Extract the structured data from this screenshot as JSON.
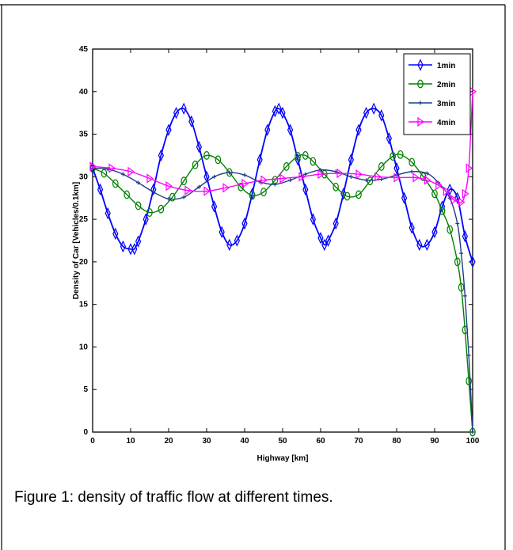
{
  "caption": "Figure 1: density of traffic flow at different times.",
  "chart_data": {
    "type": "line",
    "xlabel": "Highway [km]",
    "ylabel": "Density of Car [Vehicles/0.1km]",
    "xlim": [
      0,
      100
    ],
    "ylim": [
      0,
      45
    ],
    "xticks": [
      0,
      10,
      20,
      30,
      40,
      50,
      60,
      70,
      80,
      90,
      100
    ],
    "yticks": [
      0,
      5,
      10,
      15,
      20,
      25,
      30,
      35,
      40,
      45
    ],
    "legend_position": "top-right",
    "grid": false,
    "series": [
      {
        "name": "1min",
        "color": "#0000ff",
        "marker": "diamond",
        "x": [
          0,
          2,
          4,
          6,
          8,
          10,
          11,
          12,
          14,
          16,
          18,
          20,
          22,
          24,
          26,
          28,
          30,
          32,
          34,
          36,
          38,
          40,
          42,
          44,
          46,
          48,
          49,
          50,
          52,
          54,
          56,
          58,
          60,
          61,
          62,
          64,
          66,
          68,
          70,
          72,
          74,
          76,
          78,
          80,
          82,
          84,
          86,
          88,
          90,
          92,
          94,
          96,
          98,
          100
        ],
        "y": [
          31,
          28.5,
          25.7,
          23.3,
          21.8,
          21.5,
          21.5,
          22.4,
          25,
          28.5,
          32.5,
          35.5,
          37.5,
          38,
          36.5,
          33.5,
          30,
          26.5,
          23.5,
          22,
          22.5,
          24.5,
          28,
          32,
          35.5,
          37.7,
          38,
          37.5,
          35.5,
          32,
          28.5,
          25,
          22.8,
          22,
          22.5,
          24.5,
          28,
          32,
          35.5,
          37.5,
          38,
          37.2,
          34.5,
          31,
          27.5,
          24,
          22,
          22,
          23.5,
          26.5,
          28.5,
          27.5,
          23,
          20
        ]
      },
      {
        "name": "2min",
        "color": "#008000",
        "marker": "circle",
        "x": [
          0,
          3,
          6,
          9,
          12,
          15,
          18,
          21,
          24,
          27,
          30,
          33,
          36,
          39,
          42,
          45,
          48,
          51,
          54,
          56,
          58,
          61,
          64,
          67,
          70,
          73,
          76,
          79,
          81,
          84,
          87,
          90,
          92,
          94,
          96,
          97,
          98,
          99,
          100
        ],
        "y": [
          31,
          30.4,
          29.2,
          27.9,
          26.6,
          25.8,
          26.2,
          27.6,
          29.5,
          31.4,
          32.5,
          32,
          30.5,
          28.8,
          27.8,
          28.2,
          29.6,
          31.2,
          32.4,
          32.5,
          31.8,
          30.3,
          28.8,
          27.7,
          27.9,
          29.5,
          31.2,
          32.4,
          32.6,
          31.7,
          30,
          28,
          26,
          23.8,
          20,
          17,
          12,
          6,
          0
        ]
      },
      {
        "name": "3min",
        "color": "#1f3c88",
        "marker": "plus",
        "x": [
          0,
          4,
          8,
          12,
          16,
          20,
          24,
          28,
          32,
          36,
          40,
          44,
          48,
          52,
          56,
          60,
          64,
          68,
          72,
          76,
          80,
          84,
          88,
          91,
          94,
          96,
          97,
          98,
          99,
          100
        ],
        "y": [
          31,
          30.9,
          30.3,
          29.3,
          28.2,
          27.4,
          27.6,
          28.8,
          30,
          30.5,
          30.2,
          29.4,
          29.1,
          29.6,
          30.3,
          30.8,
          30.6,
          30,
          29.6,
          29.7,
          30.2,
          30.6,
          30.4,
          29.3,
          27.5,
          24.5,
          21,
          16,
          9,
          0
        ]
      },
      {
        "name": "4min",
        "color": "#ff00ff",
        "marker": "triangle-right",
        "x": [
          0,
          5,
          10,
          15,
          20,
          25,
          30,
          35,
          40,
          45,
          50,
          55,
          60,
          65,
          70,
          75,
          80,
          85,
          88,
          91,
          93,
          95,
          97,
          98,
          99,
          100
        ],
        "y": [
          31.2,
          31,
          30.6,
          29.8,
          28.9,
          28.4,
          28.3,
          28.7,
          29.2,
          29.6,
          29.8,
          30,
          30.3,
          30.4,
          30.3,
          30,
          29.9,
          29.9,
          29.6,
          29,
          28.3,
          27.3,
          27,
          28,
          31,
          40
        ]
      }
    ]
  }
}
